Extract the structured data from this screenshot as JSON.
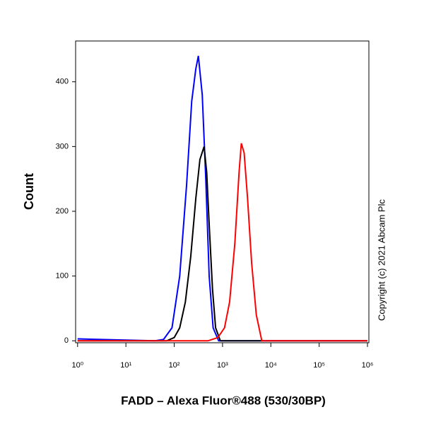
{
  "chart_data": {
    "type": "line",
    "x_label": "FADD – Alexa Fluor®488 (530/30BP)",
    "y_label": "Count",
    "annotation": "Copyright (c) 2021 Abcam Plc",
    "x_scale": "log",
    "xlim": [
      0.91,
      1070000
    ],
    "ylim": [
      -3,
      463
    ],
    "xticks": [
      {
        "value": 1,
        "label": "10⁰"
      },
      {
        "value": 10,
        "label": "10¹"
      },
      {
        "value": 100,
        "label": "10²"
      },
      {
        "value": 1000,
        "label": "10³"
      },
      {
        "value": 10000,
        "label": "10⁴"
      },
      {
        "value": 100000,
        "label": "10⁵"
      },
      {
        "value": 1000000,
        "label": "10⁶"
      }
    ],
    "yticks": [
      0,
      100,
      200,
      300,
      400
    ],
    "series": [
      {
        "color": "#0000ff",
        "x": [
          1,
          40,
          60,
          90,
          130,
          180,
          230,
          280,
          316,
          380,
          450,
          530,
          640,
          830,
          1000000
        ],
        "values": [
          3,
          0,
          2,
          20,
          100,
          240,
          370,
          420,
          440,
          380,
          250,
          100,
          20,
          0,
          0
        ]
      },
      {
        "color": "#000000",
        "x": [
          1,
          70,
          100,
          130,
          170,
          220,
          280,
          340,
          415,
          470,
          530,
          620,
          720,
          900,
          1000000
        ],
        "values": [
          0,
          0,
          5,
          20,
          60,
          130,
          220,
          280,
          300,
          260,
          180,
          80,
          20,
          0,
          0
        ]
      },
      {
        "color": "#ff0000",
        "x": [
          1,
          500,
          800,
          1100,
          1400,
          1800,
          2200,
          2450,
          2800,
          3300,
          4000,
          5000,
          6500,
          1000000
        ],
        "values": [
          0,
          0,
          5,
          20,
          60,
          150,
          260,
          305,
          290,
          220,
          120,
          40,
          0,
          0
        ]
      }
    ]
  }
}
